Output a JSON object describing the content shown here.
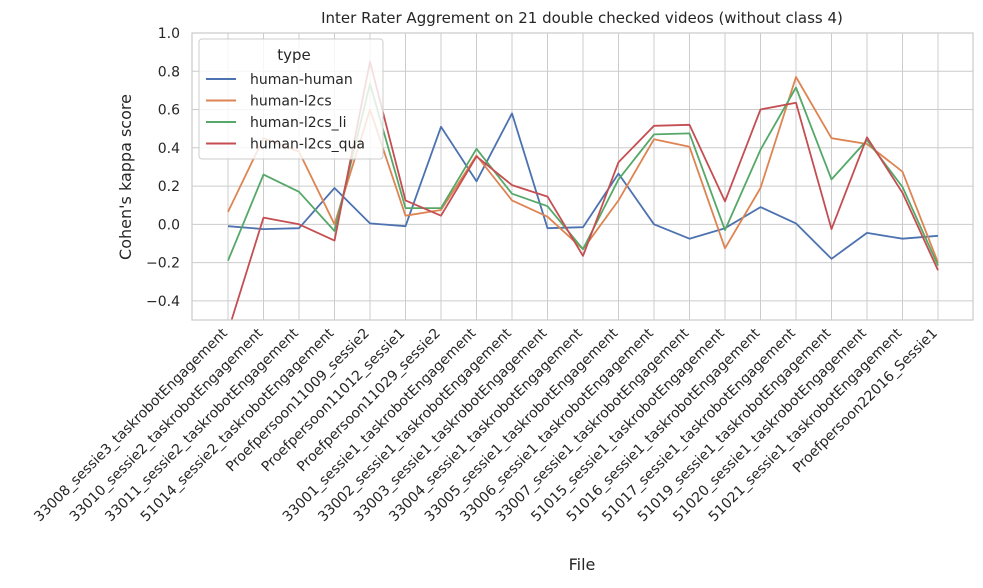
{
  "chart_data": {
    "type": "line",
    "title": "Inter Rater Aggrement on 21 double checked videos (without class 4)",
    "xlabel": "File",
    "ylabel": "Cohen's kappa score",
    "ylim": [
      -0.5,
      1.0
    ],
    "yticks": [
      -0.4,
      -0.2,
      0.0,
      0.2,
      0.4,
      0.6,
      0.8,
      1.0
    ],
    "ytick_labels": [
      "−0.4",
      "−0.2",
      "0.0",
      "0.2",
      "0.4",
      "0.6",
      "0.8",
      "1.0"
    ],
    "grid": true,
    "legend_title": "type",
    "legend_position": "top-left",
    "categories": [
      "33008_sessie3_taskrobotEngagement",
      "33010_sessie2_taskrobotEngagement",
      "33011_sessie2_taskrobotEngagement",
      "51014_sessie2_taskrobotEngagement",
      "Proefpersoon11009_sessie2",
      "Proefpersoon11012_sessie1",
      "Proefpersoon11029_sessie2",
      "33001_sessie1_taskrobotEngagement",
      "33002_sessie1_taskrobotEngagement",
      "33003_sessie1_taskrobotEngagement",
      "33004_sessie1_taskrobotEngagement",
      "33005_sessie1_taskrobotEngagement",
      "33006_sessie1_taskrobotEngagement",
      "33007_sessie1_taskrobotEngagement",
      "51015_sessie1_taskrobotEngagement",
      "51016_sessie1_taskrobotEngagement",
      "51017_sessie1_taskrobotEngagement",
      "51019_sessie1_taskrobotEngagement",
      "51020_sessie1_taskrobotEngagement",
      "51021_sessie1_taskrobotEngagement",
      "Proefpersoon22016_Sessie1"
    ],
    "series": [
      {
        "name": "human-human",
        "color": "#4c72b0",
        "values": [
          -0.01,
          -0.025,
          -0.02,
          0.19,
          0.005,
          -0.01,
          0.51,
          0.225,
          0.58,
          -0.02,
          -0.015,
          0.265,
          0.0,
          -0.075,
          -0.02,
          0.09,
          0.005,
          -0.18,
          -0.045,
          -0.075,
          -0.06
        ]
      },
      {
        "name": "human-l2cs",
        "color": "#dd8452",
        "values": [
          0.065,
          0.45,
          0.38,
          0.0,
          0.6,
          0.045,
          0.075,
          0.36,
          0.125,
          0.04,
          -0.13,
          0.125,
          0.445,
          0.405,
          -0.125,
          0.19,
          0.77,
          0.45,
          0.42,
          0.275,
          -0.2
        ]
      },
      {
        "name": "human-l2cs_li",
        "color": "#55a868",
        "values": [
          -0.19,
          0.26,
          0.17,
          -0.035,
          0.735,
          0.085,
          0.085,
          0.395,
          0.16,
          0.095,
          -0.13,
          0.235,
          0.47,
          0.475,
          -0.03,
          0.39,
          0.715,
          0.235,
          0.44,
          0.195,
          -0.215
        ]
      },
      {
        "name": "human-l2cs_qua",
        "color": "#c44e52",
        "values": [
          -0.56,
          0.035,
          0.0,
          -0.085,
          0.85,
          0.125,
          0.045,
          0.355,
          0.205,
          0.145,
          -0.165,
          0.325,
          0.515,
          0.52,
          0.12,
          0.6,
          0.635,
          -0.025,
          0.455,
          0.165,
          -0.24
        ]
      }
    ]
  }
}
